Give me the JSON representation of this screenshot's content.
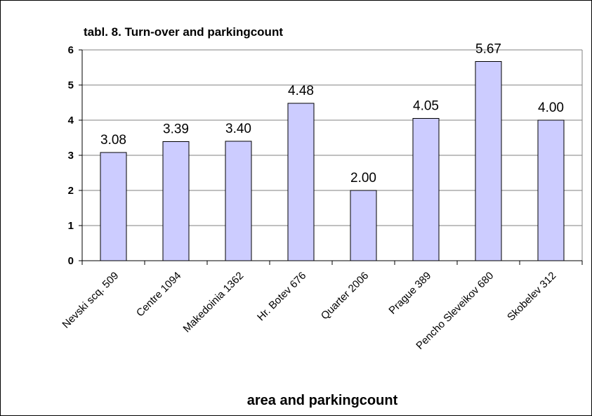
{
  "chart_data": {
    "type": "bar",
    "title": "tabl. 8. Turn-over and parkingcount",
    "xlabel": "area and parkingcount",
    "ylabel": "",
    "categories": [
      "Nevski scq. 509",
      "Centre 1094",
      "Makedoinia 1362",
      "Hr. Botev 676",
      "Quarter 2006",
      "Prague 389",
      "Pencho Sleveikov 680",
      "Skobelev 312"
    ],
    "values": [
      3.08,
      3.39,
      3.4,
      4.48,
      2.0,
      4.05,
      5.67,
      4.0
    ],
    "value_labels": [
      "3.08",
      "3.39",
      "3.40",
      "4.48",
      "2.00",
      "4.05",
      "5.67",
      "4.00"
    ],
    "ylim": [
      0,
      6
    ],
    "yticks": [
      "0",
      "1",
      "2",
      "3",
      "4",
      "5",
      "6"
    ],
    "grid": true,
    "legend": "none",
    "bar_color": "#ccccff",
    "bar_edge_color": "#000000",
    "grid_color": "#808080"
  }
}
